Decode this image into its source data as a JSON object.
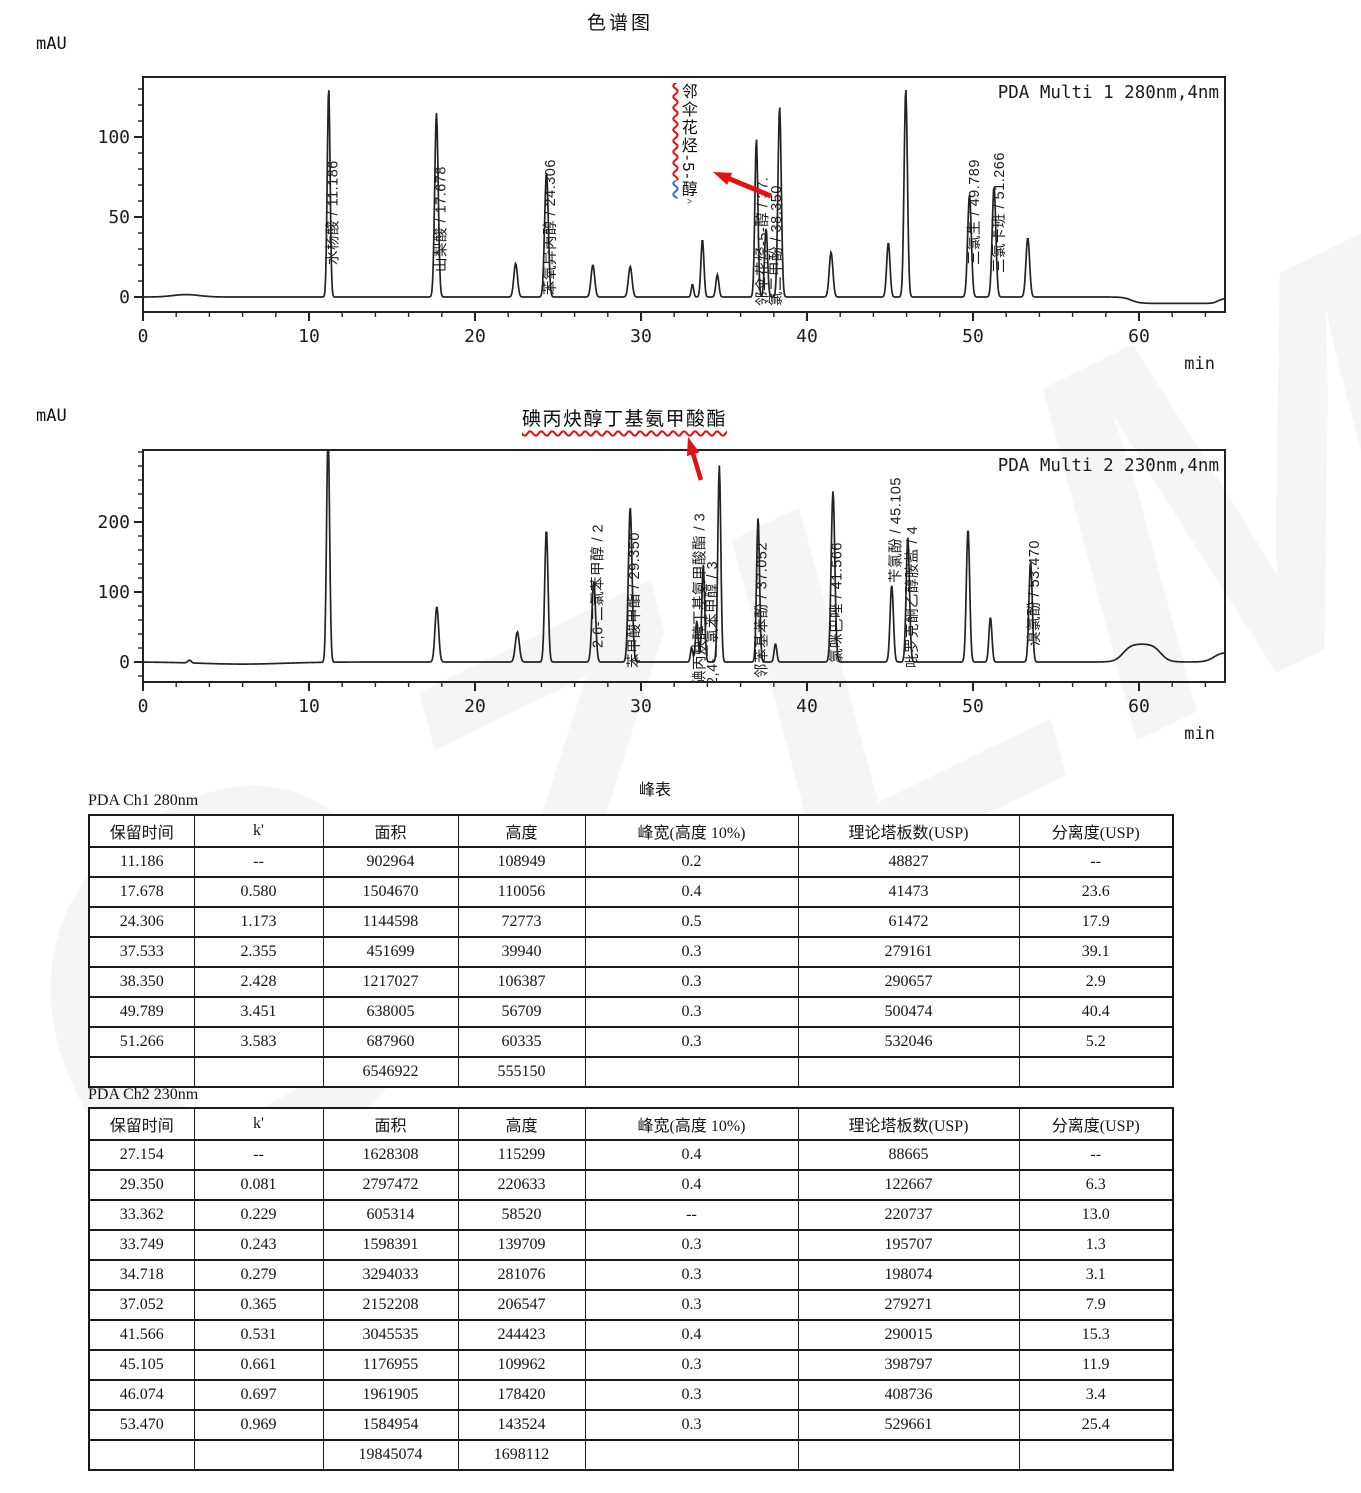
{
  "page": {
    "title": "色谱图",
    "watermark": "GZLM"
  },
  "annotations": {
    "ch1": {
      "text": "邻伞花烃-5-醇",
      "segments": [
        {
          "text": "邻伞花烃-5-",
          "underline": "red"
        },
        {
          "text": "醇",
          "underline": "blue"
        }
      ],
      "caret": "^",
      "arrow_color": "#e01212"
    },
    "ch2": {
      "text": "碘丙炔醇丁基氨甲酸酯",
      "arrow_color": "#e01212"
    }
  },
  "chart_data": [
    {
      "type": "line",
      "title": "PDA Multi 1 280nm,4nm",
      "x_label": "min",
      "y_label": "mAU",
      "x_ticks": [
        0,
        10,
        20,
        30,
        40,
        50,
        60
      ],
      "y_ticks": [
        0,
        50,
        100
      ],
      "x_range": [
        0,
        65.2
      ],
      "y_range": [
        -9,
        137
      ],
      "grid": false,
      "peaks": [
        [
          11.186,
          131,
          0.085
        ],
        [
          17.678,
          115,
          0.105
        ],
        [
          22.45,
          21,
          0.11
        ],
        [
          24.306,
          78,
          0.11
        ],
        [
          27.1,
          20,
          0.11
        ],
        [
          29.35,
          19,
          0.11
        ],
        [
          33.1,
          8,
          0.07
        ],
        [
          33.7,
          36,
          0.09
        ],
        [
          34.6,
          14,
          0.09
        ],
        [
          36.95,
          99,
          0.09
        ],
        [
          37.533,
          43,
          0.09
        ],
        [
          38.35,
          119,
          0.1
        ],
        [
          41.45,
          28,
          0.11
        ],
        [
          44.9,
          34,
          0.1
        ],
        [
          45.95,
          130,
          0.1
        ],
        [
          49.789,
          64,
          0.11
        ],
        [
          51.266,
          69,
          0.11
        ],
        [
          53.3,
          37,
          0.11
        ]
      ],
      "baseline_features": [
        {
          "type": "gauss",
          "t": 2.6,
          "h": 1.5,
          "w": 0.8
        },
        {
          "type": "step",
          "t": 59.55,
          "dh": -4,
          "w": 0.25
        },
        {
          "type": "step",
          "t": 64.75,
          "dh": 3,
          "w": 0.15
        }
      ],
      "peak_labels": [
        {
          "text": "水杨酸 / 11.186",
          "t": 11.45,
          "y": 188
        },
        {
          "text": "山梨酸 / 17.678",
          "t": 17.95,
          "y": 195
        },
        {
          "text": "苯氧异丙醇 / 24.306",
          "t": 24.55,
          "y": 218
        },
        {
          "text": "邻伞花烃-5-醇 / 37.",
          "t": 37.35,
          "y": 229
        },
        {
          "text": "氯二甲酚 / 38.350",
          "t": 38.15,
          "y": 229
        },
        {
          "text": "三氯生 / 49.789",
          "t": 50.1,
          "y": 188
        },
        {
          "text": "三氯卡班 / 51.266",
          "t": 51.6,
          "y": 196
        }
      ]
    },
    {
      "type": "line",
      "title": "PDA Multi 2 230nm,4nm",
      "x_label": "min",
      "y_label": "mAU",
      "x_ticks": [
        0,
        10,
        20,
        30,
        40,
        50,
        60
      ],
      "y_ticks": [
        0,
        100,
        200
      ],
      "x_range": [
        0,
        65.2
      ],
      "y_range": [
        -28,
        303
      ],
      "grid": false,
      "peaks": [
        [
          11.15,
          330,
          0.09
        ],
        [
          17.7,
          79,
          0.11
        ],
        [
          22.55,
          43,
          0.12
        ],
        [
          24.3,
          189,
          0.1
        ],
        [
          27.154,
          115,
          0.11
        ],
        [
          29.35,
          221,
          0.11
        ],
        [
          33.05,
          21,
          0.07
        ],
        [
          33.362,
          59,
          0.08
        ],
        [
          33.749,
          140,
          0.085
        ],
        [
          34.718,
          281,
          0.09
        ],
        [
          37.052,
          207,
          0.09
        ],
        [
          38.1,
          26,
          0.08
        ],
        [
          41.566,
          244,
          0.11
        ],
        [
          45.105,
          110,
          0.1
        ],
        [
          46.074,
          178,
          0.1
        ],
        [
          49.7,
          190,
          0.1
        ],
        [
          51.05,
          64,
          0.09
        ],
        [
          53.47,
          144,
          0.1
        ]
      ],
      "baseline_features": [
        {
          "type": "gauss",
          "t": 2.8,
          "h": 4,
          "w": 0.1
        },
        {
          "type": "gauss",
          "t": 6,
          "h": -3,
          "w": 2.5
        },
        {
          "type": "plateau",
          "t1": 59.05,
          "t2": 61.3,
          "h": 26,
          "w": 0.25
        },
        {
          "type": "step",
          "t": 64.5,
          "dh": 14,
          "w": 0.25
        }
      ],
      "peak_labels": [
        {
          "text": "2,6-二氯苯甲醇 / 2",
          "t": 27.4,
          "y": 198
        },
        {
          "text": "苯甲酸甲酯 / 29.350",
          "t": 29.6,
          "y": 218
        },
        {
          "text": "碘丙炔醇丁基氨甲酸酯 / 3",
          "t": 33.55,
          "y": 235
        },
        {
          "text": "2,4-二氯苯甲醇 / 3",
          "t": 34.3,
          "y": 235
        },
        {
          "text": "邻苯基苯酚 / 37.052",
          "t": 37.3,
          "y": 228
        },
        {
          "text": "氯咪巴唑 / 41.566",
          "t": 41.8,
          "y": 213
        },
        {
          "text": "苄氯酚 / 45.105",
          "t": 45.35,
          "y": 133
        },
        {
          "text": "吡罗克酮乙醇胺盐 / 4",
          "t": 46.35,
          "y": 218
        },
        {
          "text": "溴氯酚 / 53.470",
          "t": 53.7,
          "y": 196
        }
      ]
    }
  ],
  "peak_tables": {
    "section_title": "峰表",
    "tables": [
      {
        "heading": "PDA Ch1 280nm",
        "columns": [
          "保留时间",
          "k'",
          "面积",
          "高度",
          "峰宽(高度 10%)",
          "理论塔板数(USP)",
          "分离度(USP)"
        ],
        "rows": [
          [
            "11.186",
            "--",
            "902964",
            "108949",
            "0.2",
            "48827",
            "--"
          ],
          [
            "17.678",
            "0.580",
            "1504670",
            "110056",
            "0.4",
            "41473",
            "23.6"
          ],
          [
            "24.306",
            "1.173",
            "1144598",
            "72773",
            "0.5",
            "61472",
            "17.9"
          ],
          [
            "37.533",
            "2.355",
            "451699",
            "39940",
            "0.3",
            "279161",
            "39.1"
          ],
          [
            "38.350",
            "2.428",
            "1217027",
            "106387",
            "0.3",
            "290657",
            "2.9"
          ],
          [
            "49.789",
            "3.451",
            "638005",
            "56709",
            "0.3",
            "500474",
            "40.4"
          ],
          [
            "51.266",
            "3.583",
            "687960",
            "60335",
            "0.3",
            "532046",
            "5.2"
          ]
        ],
        "total_row": [
          "",
          "",
          "6546922",
          "555150",
          "",
          "",
          ""
        ]
      },
      {
        "heading": "PDA Ch2 230nm",
        "columns": [
          "保留时间",
          "k'",
          "面积",
          "高度",
          "峰宽(高度 10%)",
          "理论塔板数(USP)",
          "分离度(USP)"
        ],
        "rows": [
          [
            "27.154",
            "--",
            "1628308",
            "115299",
            "0.4",
            "88665",
            "--"
          ],
          [
            "29.350",
            "0.081",
            "2797472",
            "220633",
            "0.4",
            "122667",
            "6.3"
          ],
          [
            "33.362",
            "0.229",
            "605314",
            "58520",
            "--",
            "220737",
            "13.0"
          ],
          [
            "33.749",
            "0.243",
            "1598391",
            "139709",
            "0.3",
            "195707",
            "1.3"
          ],
          [
            "34.718",
            "0.279",
            "3294033",
            "281076",
            "0.3",
            "198074",
            "3.1"
          ],
          [
            "37.052",
            "0.365",
            "2152208",
            "206547",
            "0.3",
            "279271",
            "7.9"
          ],
          [
            "41.566",
            "0.531",
            "3045535",
            "244423",
            "0.4",
            "290015",
            "15.3"
          ],
          [
            "45.105",
            "0.661",
            "1176955",
            "109962",
            "0.3",
            "398797",
            "11.9"
          ],
          [
            "46.074",
            "0.697",
            "1961905",
            "178420",
            "0.3",
            "408736",
            "3.4"
          ],
          [
            "53.470",
            "0.969",
            "1584954",
            "143524",
            "0.3",
            "529661",
            "25.4"
          ]
        ],
        "total_row": [
          "",
          "",
          "19845074",
          "1698112",
          "",
          "",
          ""
        ]
      }
    ]
  }
}
